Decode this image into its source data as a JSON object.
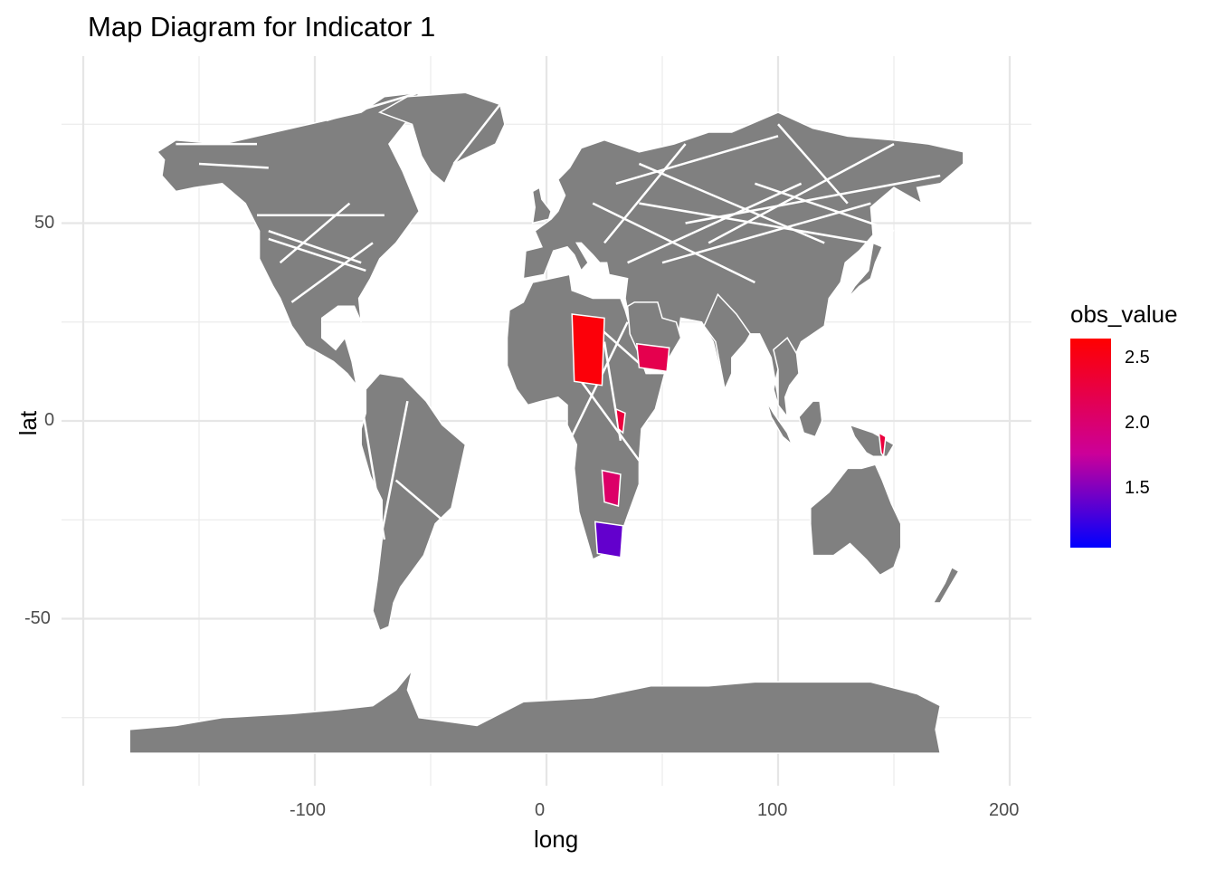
{
  "chart_data": {
    "type": "choropleth",
    "title": "Map Diagram for Indicator 1",
    "xlabel": "long",
    "ylabel": "lat",
    "x_ticks": [
      -100,
      0,
      100,
      200
    ],
    "y_ticks": [
      50,
      0,
      -50
    ],
    "xlim": [
      -185,
      210
    ],
    "ylim": [
      -92,
      95
    ],
    "grid": true,
    "land_color": "#808080",
    "border_color": "#ffffff",
    "legend": {
      "title": "obs_value",
      "placement": "right",
      "range": [
        1.05,
        2.65
      ],
      "ticks": [
        2.5,
        2.0,
        1.5
      ],
      "low_color": "#0000ff",
      "mid_color": "#cc0099",
      "high_color": "#ff0000"
    },
    "regions": [
      {
        "approx_long": 18,
        "approx_lat": 18,
        "value": 2.6
      },
      {
        "approx_long": 46,
        "approx_lat": 16,
        "value": 2.2
      },
      {
        "approx_long": 32,
        "approx_lat": 0,
        "value": 2.3
      },
      {
        "approx_long": 28,
        "approx_lat": -17,
        "value": 2.05
      },
      {
        "approx_long": 27,
        "approx_lat": -30,
        "value": 1.4
      },
      {
        "approx_long": 145,
        "approx_lat": -6,
        "value": 2.3
      }
    ]
  }
}
